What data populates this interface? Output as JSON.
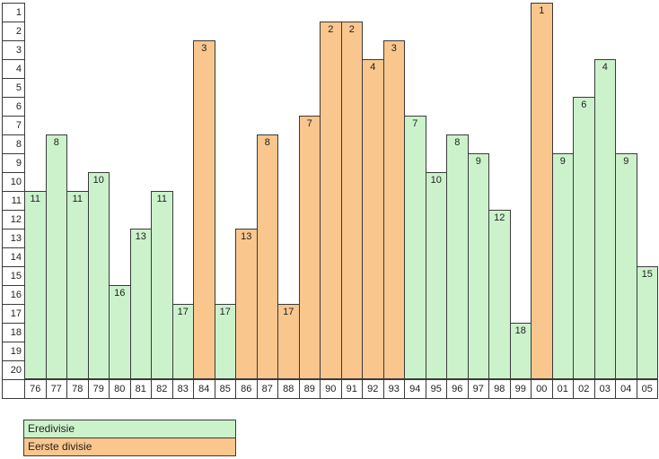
{
  "chart_data": {
    "type": "bar",
    "title": "",
    "xlabel": "",
    "ylabel": "",
    "categories": [
      "76",
      "77",
      "78",
      "79",
      "80",
      "81",
      "82",
      "83",
      "84",
      "85",
      "86",
      "87",
      "88",
      "89",
      "90",
      "91",
      "92",
      "93",
      "94",
      "95",
      "96",
      "97",
      "98",
      "99",
      "00",
      "01",
      "02",
      "03",
      "04",
      "05"
    ],
    "values": [
      11,
      8,
      11,
      10,
      16,
      13,
      11,
      17,
      3,
      17,
      13,
      8,
      17,
      7,
      2,
      2,
      4,
      3,
      7,
      10,
      8,
      9,
      12,
      18,
      1,
      9,
      6,
      4,
      9,
      15
    ],
    "divisions": [
      "eredivisie",
      "eredivisie",
      "eredivisie",
      "eredivisie",
      "eredivisie",
      "eredivisie",
      "eredivisie",
      "eredivisie",
      "eerste-divisie",
      "eredivisie",
      "eerste-divisie",
      "eerste-divisie",
      "eerste-divisie",
      "eerste-divisie",
      "eerste-divisie",
      "eerste-divisie",
      "eerste-divisie",
      "eerste-divisie",
      "eredivisie",
      "eredivisie",
      "eredivisie",
      "eredivisie",
      "eredivisie",
      "eredivisie",
      "eerste-divisie",
      "eredivisie",
      "eredivisie",
      "eredivisie",
      "eredivisie",
      "eredivisie"
    ],
    "y_axis": {
      "min": 1,
      "max": 20,
      "inverted": true,
      "ticks": [
        1,
        2,
        3,
        4,
        5,
        6,
        7,
        8,
        9,
        10,
        11,
        12,
        13,
        14,
        15,
        16,
        17,
        18,
        19,
        20
      ]
    },
    "bar_labels_shown": true,
    "grid": false,
    "legend_position": "bottom-left",
    "legend": [
      {
        "key": "eredivisie",
        "label": "Eredivisie",
        "color": "#ccf2cc"
      },
      {
        "key": "eerste-divisie",
        "label": "Eerste divisie",
        "color": "#f9c68d"
      }
    ],
    "border_color": "#3a3a3a",
    "background_color": "#ffffff"
  }
}
